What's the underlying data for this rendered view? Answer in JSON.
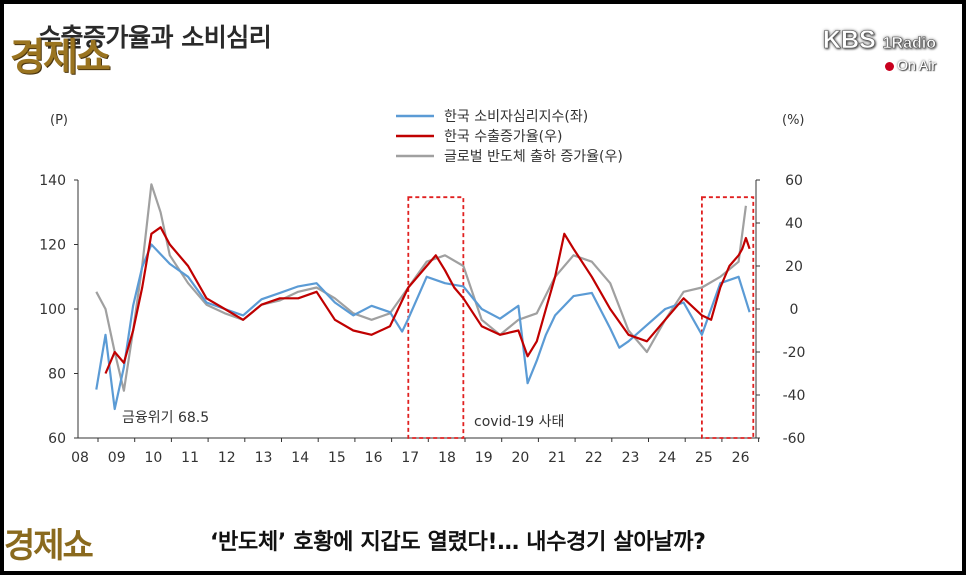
{
  "title": "수출증가율과 소비심리",
  "logo_text": "경제쇼",
  "brand": {
    "kbs": "KBS",
    "channel": "1Radio",
    "on_air": "On Air"
  },
  "caption": "‘반도체’ 호황에 지갑도 열렸다!… 내수경기 살아날까?",
  "chart_data": {
    "type": "line",
    "left_axis": {
      "unit_label": "(P)",
      "ticks": [
        "140",
        "120",
        "100",
        "80",
        "60"
      ],
      "range": [
        60,
        140
      ]
    },
    "right_axis": {
      "unit_label": "(%)",
      "ticks": [
        "60",
        "40",
        "20",
        "0",
        "-20",
        "-40",
        "-60"
      ],
      "range": [
        -60,
        60
      ]
    },
    "x_ticks": [
      "08",
      "09",
      "10",
      "11",
      "12",
      "13",
      "14",
      "15",
      "16",
      "17",
      "18",
      "19",
      "20",
      "21",
      "22",
      "23",
      "24",
      "25",
      "26"
    ],
    "x_range": [
      2008,
      2026.7
    ],
    "legend": [
      {
        "label": "한국 소비자심리지수(좌)",
        "color": "#5b9bd5"
      },
      {
        "label": "한국 수출증가율(우)",
        "color": "#c00000"
      },
      {
        "label": "글로벌 반도체 출하 증가율(우)",
        "color": "#a0a0a0"
      }
    ],
    "annotations": [
      {
        "text": "금융위기 68.5",
        "x": 2009.1,
        "y": 68.5
      },
      {
        "text": "covid-19 사태",
        "x": 2020.1,
        "y": 65
      }
    ],
    "highlight_boxes": [
      {
        "x": [
          2017.0,
          2018.5
        ],
        "y_right": [
          -60,
          52
        ]
      },
      {
        "x": [
          2025.0,
          2026.4
        ],
        "y_right": [
          -60,
          52
        ]
      }
    ],
    "series": [
      {
        "name": "한국 소비자심리지수(좌)",
        "axis": "left",
        "color": "#5b9bd5",
        "x": [
          2008.5,
          2008.75,
          2009.0,
          2009.25,
          2009.5,
          2009.75,
          2010.0,
          2010.5,
          2011.0,
          2011.5,
          2012.0,
          2012.5,
          2013.0,
          2013.5,
          2014.0,
          2014.5,
          2015.0,
          2015.5,
          2016.0,
          2016.5,
          2016.83,
          2017.0,
          2017.5,
          2018.0,
          2018.5,
          2019.0,
          2019.5,
          2020.0,
          2020.25,
          2020.5,
          2020.75,
          2021.0,
          2021.5,
          2022.0,
          2022.5,
          2022.75,
          2023.0,
          2023.5,
          2024.0,
          2024.5,
          2025.0,
          2025.5,
          2026.0,
          2026.3
        ],
        "y": [
          75,
          92,
          69,
          82,
          101,
          113,
          120,
          114,
          110,
          102,
          100,
          98,
          103,
          105,
          107,
          108,
          102,
          98,
          101,
          99,
          93,
          97,
          110,
          108,
          107,
          100,
          97,
          101,
          77,
          84,
          92,
          98,
          104,
          105,
          94,
          88,
          90,
          95,
          100,
          102,
          92,
          108,
          110,
          99
        ]
      },
      {
        "name": "한국 수출증가율(우)",
        "axis": "right",
        "color": "#c00000",
        "x": [
          2008.75,
          2009.0,
          2009.25,
          2009.5,
          2009.75,
          2010.0,
          2010.25,
          2010.5,
          2011.0,
          2011.5,
          2012.0,
          2012.5,
          2013.0,
          2013.5,
          2014.0,
          2014.5,
          2015.0,
          2015.5,
          2016.0,
          2016.5,
          2017.0,
          2017.25,
          2017.5,
          2017.75,
          2018.0,
          2018.25,
          2018.5,
          2019.0,
          2019.5,
          2020.0,
          2020.25,
          2020.5,
          2020.75,
          2021.0,
          2021.25,
          2021.5,
          2022.0,
          2022.5,
          2023.0,
          2023.5,
          2024.0,
          2024.5,
          2025.0,
          2025.25,
          2025.5,
          2025.75,
          2026.0,
          2026.1,
          2026.2,
          2026.3
        ],
        "y": [
          -30,
          -20,
          -25,
          -10,
          10,
          35,
          38,
          30,
          20,
          5,
          0,
          -5,
          2,
          5,
          5,
          8,
          -5,
          -10,
          -12,
          -8,
          10,
          15,
          20,
          25,
          18,
          10,
          5,
          -8,
          -12,
          -10,
          -22,
          -15,
          0,
          15,
          35,
          28,
          15,
          0,
          -12,
          -15,
          -5,
          5,
          -3,
          -5,
          10,
          20,
          25,
          28,
          33,
          28
        ]
      },
      {
        "name": "글로벌 반도체 출하 증가율(우)",
        "axis": "right",
        "color": "#a0a0a0",
        "x": [
          2008.5,
          2008.75,
          2009.0,
          2009.25,
          2009.5,
          2009.75,
          2010.0,
          2010.25,
          2010.5,
          2011.0,
          2011.5,
          2012.0,
          2012.5,
          2013.0,
          2013.5,
          2014.0,
          2014.5,
          2015.0,
          2015.5,
          2016.0,
          2016.5,
          2017.0,
          2017.5,
          2018.0,
          2018.5,
          2019.0,
          2019.5,
          2020.0,
          2020.5,
          2021.0,
          2021.5,
          2022.0,
          2022.5,
          2023.0,
          2023.5,
          2024.0,
          2024.5,
          2025.0,
          2025.5,
          2026.0,
          2026.2
        ],
        "y": [
          8,
          0,
          -20,
          -38,
          -10,
          20,
          58,
          45,
          25,
          12,
          2,
          -2,
          -5,
          2,
          4,
          8,
          10,
          5,
          -2,
          -5,
          -2,
          10,
          22,
          25,
          20,
          -5,
          -12,
          -5,
          -2,
          15,
          25,
          22,
          12,
          -10,
          -20,
          -5,
          8,
          10,
          15,
          22,
          48
        ]
      }
    ]
  }
}
